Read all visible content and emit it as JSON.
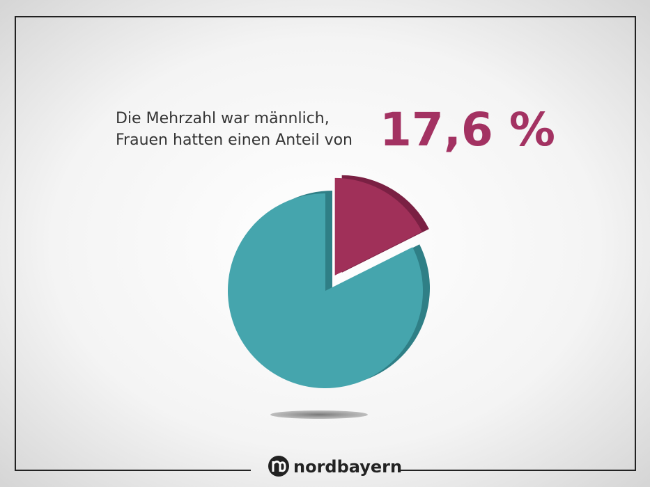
{
  "chart_data": {
    "type": "pie",
    "title": [
      "Die Mehrzahl war männlich,",
      "Frauen hatten einen Anteil von"
    ],
    "values": [
      17.6,
      82.4
    ],
    "value_labels": [
      "17,6 %",
      null
    ],
    "colors": [
      "#a03059",
      "#45a5ad"
    ],
    "depth_colors": [
      "#7a2043",
      "#2f7f86"
    ],
    "explode": [
      true,
      false
    ]
  },
  "brand": "nordbayern"
}
